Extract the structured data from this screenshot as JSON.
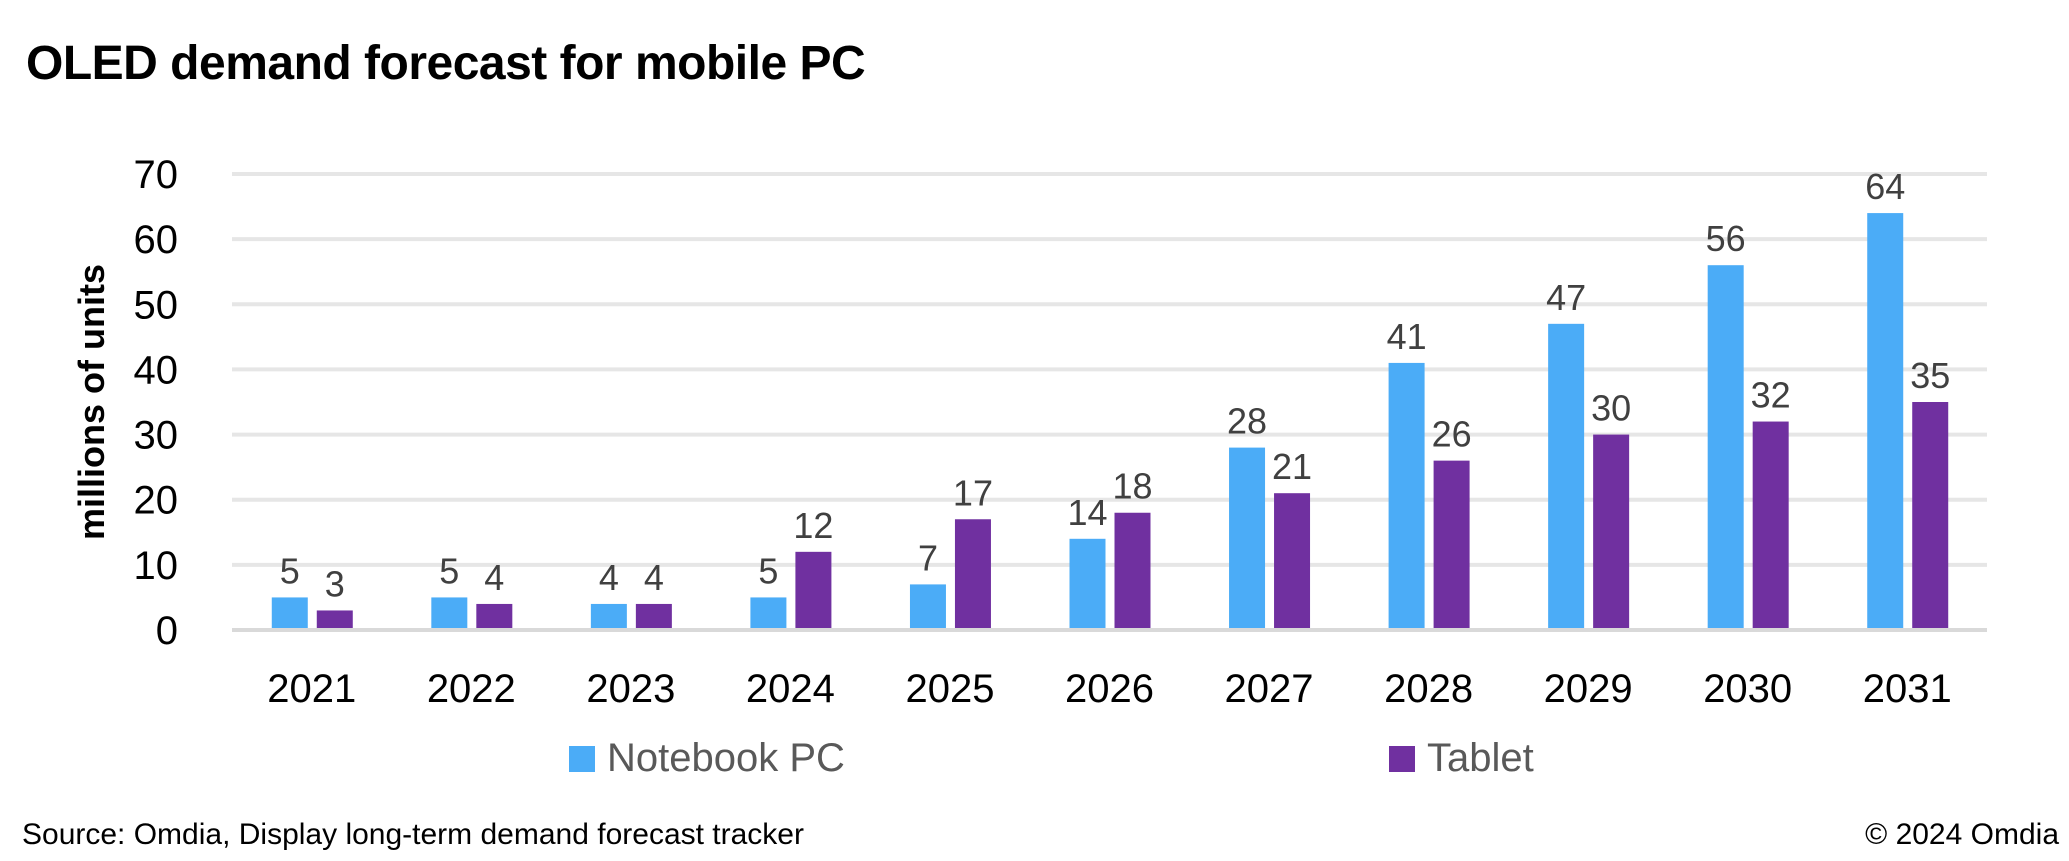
{
  "title": "OLED demand forecast for mobile PC",
  "source": "Source: Omdia, Display long-term demand forecast tracker",
  "copyright": "© 2024 Omdia",
  "chart_data": {
    "type": "bar",
    "title": "OLED demand forecast for mobile PC",
    "xlabel": "",
    "ylabel": "millions of units",
    "ylim": [
      0,
      70
    ],
    "yticks": [
      0,
      10,
      20,
      30,
      40,
      50,
      60,
      70
    ],
    "grid": true,
    "legend_position": "bottom",
    "categories": [
      "2021",
      "2022",
      "2023",
      "2024",
      "2025",
      "2026",
      "2027",
      "2028",
      "2029",
      "2030",
      "2031"
    ],
    "series": [
      {
        "name": "Notebook PC",
        "color": "#4BACF7",
        "values": [
          5,
          5,
          4,
          5,
          7,
          14,
          28,
          41,
          47,
          56,
          64
        ]
      },
      {
        "name": "Tablet",
        "color": "#7030A0",
        "values": [
          3,
          4,
          4,
          12,
          17,
          18,
          21,
          26,
          30,
          32,
          35
        ]
      }
    ]
  }
}
